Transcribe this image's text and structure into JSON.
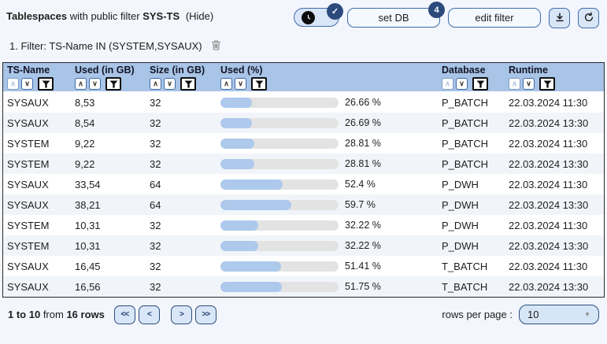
{
  "header": {
    "title_bold": "Tablespaces",
    "title_rest": "with public filter",
    "filter_name": "SYS-TS",
    "hide_label": "(Hide)"
  },
  "toolbar": {
    "time_badge": "✓",
    "set_db_label": "set DB",
    "set_db_badge": "4",
    "edit_filter_label": "edit filter"
  },
  "filter_bar": {
    "text": "1. Filter: TS-Name IN (SYSTEM,SYSAUX)"
  },
  "icons": {
    "sort_asc": "∧",
    "sort_desc": "∨",
    "dropdown_arrow": "▼",
    "pager_first": "<<",
    "pager_prev": "<",
    "pager_next": ">",
    "pager_last": ">>"
  },
  "table": {
    "columns": [
      {
        "label": "TS-Name",
        "asc_enabled": false
      },
      {
        "label": "Used (in GB)",
        "asc_enabled": true
      },
      {
        "label": "Size (in GB)",
        "asc_enabled": true
      },
      {
        "label": "Used (%)",
        "asc_enabled": true
      },
      {
        "label": "Database",
        "asc_enabled": false
      },
      {
        "label": "Runtime",
        "asc_enabled": false
      }
    ],
    "rows": [
      {
        "ts_name": "SYSAUX",
        "used_gb": "8,53",
        "size_gb": "32",
        "used_pct": 26.66,
        "used_pct_label": "26.66 %",
        "database": "P_BATCH",
        "runtime": "22.03.2024 11:30"
      },
      {
        "ts_name": "SYSAUX",
        "used_gb": "8,54",
        "size_gb": "32",
        "used_pct": 26.69,
        "used_pct_label": "26.69 %",
        "database": "P_BATCH",
        "runtime": "22.03.2024 13:30"
      },
      {
        "ts_name": "SYSTEM",
        "used_gb": "9,22",
        "size_gb": "32",
        "used_pct": 28.81,
        "used_pct_label": "28.81 %",
        "database": "P_BATCH",
        "runtime": "22.03.2024 11:30"
      },
      {
        "ts_name": "SYSTEM",
        "used_gb": "9,22",
        "size_gb": "32",
        "used_pct": 28.81,
        "used_pct_label": "28.81 %",
        "database": "P_BATCH",
        "runtime": "22.03.2024 13:30"
      },
      {
        "ts_name": "SYSAUX",
        "used_gb": "33,54",
        "size_gb": "64",
        "used_pct": 52.4,
        "used_pct_label": "52.4 %",
        "database": "P_DWH",
        "runtime": "22.03.2024 11:30"
      },
      {
        "ts_name": "SYSAUX",
        "used_gb": "38,21",
        "size_gb": "64",
        "used_pct": 59.7,
        "used_pct_label": "59.7 %",
        "database": "P_DWH",
        "runtime": "22.03.2024 13:30"
      },
      {
        "ts_name": "SYSTEM",
        "used_gb": "10,31",
        "size_gb": "32",
        "used_pct": 32.22,
        "used_pct_label": "32.22 %",
        "database": "P_DWH",
        "runtime": "22.03.2024 11:30"
      },
      {
        "ts_name": "SYSTEM",
        "used_gb": "10,31",
        "size_gb": "32",
        "used_pct": 32.22,
        "used_pct_label": "32.22 %",
        "database": "P_DWH",
        "runtime": "22.03.2024 13:30"
      },
      {
        "ts_name": "SYSAUX",
        "used_gb": "16,45",
        "size_gb": "32",
        "used_pct": 51.41,
        "used_pct_label": "51.41 %",
        "database": "T_BATCH",
        "runtime": "22.03.2024 11:30"
      },
      {
        "ts_name": "SYSAUX",
        "used_gb": "16,56",
        "size_gb": "32",
        "used_pct": 51.75,
        "used_pct_label": "51.75 %",
        "database": "T_BATCH",
        "runtime": "22.03.2024 13:30"
      }
    ]
  },
  "pagination": {
    "shown": "1 to 10",
    "from_word": "from",
    "total": "16 rows",
    "rows_per_page_label": "rows per page :",
    "rows_per_page_value": "10"
  },
  "colors": {
    "header_bg": "#a8c4e6",
    "bar_fill": "#adc9ec",
    "bar_track": "#e3e3e3",
    "badge_bg": "#2c4b7c",
    "button_bg": "#d9e6f7",
    "accent_border": "#3f6cab",
    "row_alt_bg": "#f1f5fa",
    "page_bg": "#f3f6fc"
  }
}
